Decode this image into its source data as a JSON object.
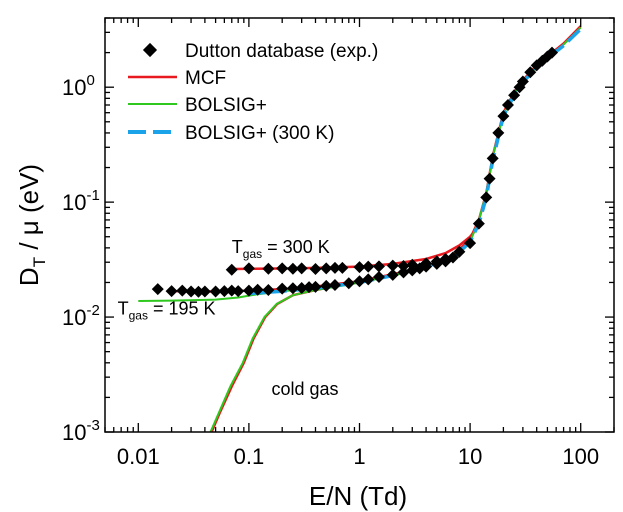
{
  "chart_data": {
    "type": "line",
    "title": "",
    "xlabel": "E/N (Td)",
    "ylabel": {
      "main": "D",
      "sub": "T",
      "rest": " / μ (eV)"
    },
    "xscale": "log",
    "yscale": "log",
    "xlim": [
      0.005,
      200
    ],
    "ylim": [
      0.001,
      4
    ],
    "x_ticks": [
      {
        "value": 0.01,
        "label": "0.01"
      },
      {
        "value": 0.1,
        "label": "0.1"
      },
      {
        "value": 1,
        "label": "1"
      },
      {
        "value": 10,
        "label": "10"
      },
      {
        "value": 100,
        "label": "100"
      }
    ],
    "y_ticks": [
      {
        "value": 0.001,
        "base": "10",
        "exp": "-3"
      },
      {
        "value": 0.01,
        "base": "10",
        "exp": "-2"
      },
      {
        "value": 0.1,
        "base": "10",
        "exp": "-1"
      },
      {
        "value": 1,
        "base": "10",
        "exp": "0"
      }
    ],
    "legend_position": "top-left",
    "colors": {
      "exp": "#000000",
      "mcf": "#e8191f",
      "bolsig": "#2ec81e",
      "bolsig300": "#1aa3e8"
    },
    "series": [
      {
        "name": "Dutton database (exp.)",
        "kind": "scatter",
        "points": [
          [
            0.015,
            0.0175
          ],
          [
            0.02,
            0.0168
          ],
          [
            0.025,
            0.017
          ],
          [
            0.03,
            0.0167
          ],
          [
            0.035,
            0.0166
          ],
          [
            0.04,
            0.0167
          ],
          [
            0.05,
            0.0167
          ],
          [
            0.06,
            0.0168
          ],
          [
            0.07,
            0.017
          ],
          [
            0.08,
            0.0168
          ],
          [
            0.1,
            0.017
          ],
          [
            0.12,
            0.0173
          ],
          [
            0.15,
            0.0172
          ],
          [
            0.2,
            0.0177
          ],
          [
            0.25,
            0.0178
          ],
          [
            0.3,
            0.0179
          ],
          [
            0.35,
            0.0182
          ],
          [
            0.4,
            0.0183
          ],
          [
            0.5,
            0.0187
          ],
          [
            0.6,
            0.019
          ],
          [
            0.8,
            0.0197
          ],
          [
            1.0,
            0.0205
          ],
          [
            1.2,
            0.0213
          ],
          [
            1.5,
            0.0223
          ],
          [
            2.0,
            0.0233
          ],
          [
            2.5,
            0.0245
          ],
          [
            3.0,
            0.0255
          ],
          [
            3.5,
            0.0265
          ],
          [
            4.0,
            0.0275
          ],
          [
            5.0,
            0.029
          ],
          [
            6.0,
            0.0305
          ],
          [
            7.0,
            0.033
          ],
          [
            8.0,
            0.037
          ],
          [
            10.0,
            0.044
          ],
          [
            12.0,
            0.065
          ],
          [
            14.0,
            0.11
          ],
          [
            15.0,
            0.16
          ],
          [
            16.0,
            0.24
          ],
          [
            18.0,
            0.4
          ],
          [
            20.0,
            0.56
          ],
          [
            22.0,
            0.7
          ],
          [
            25.0,
            0.85
          ],
          [
            28.0,
            1.0
          ],
          [
            30.0,
            1.12
          ],
          [
            35.0,
            1.35
          ],
          [
            40.0,
            1.55
          ],
          [
            45.0,
            1.7
          ],
          [
            50.0,
            1.85
          ],
          [
            55.0,
            2.0
          ],
          [
            0.07,
            0.0258
          ],
          [
            0.1,
            0.0265
          ],
          [
            0.15,
            0.0263
          ],
          [
            0.2,
            0.0265
          ],
          [
            0.25,
            0.0263
          ],
          [
            0.3,
            0.0265
          ],
          [
            0.4,
            0.0262
          ],
          [
            0.5,
            0.0265
          ],
          [
            0.6,
            0.0268
          ],
          [
            0.7,
            0.0268
          ],
          [
            1.0,
            0.0272
          ],
          [
            1.2,
            0.0275
          ],
          [
            1.5,
            0.0276
          ],
          [
            2.0,
            0.028
          ],
          [
            2.5,
            0.0278
          ],
          [
            3.0,
            0.0285
          ],
          [
            4.0,
            0.0293
          ],
          [
            5.0,
            0.0305
          ],
          [
            6.0,
            0.032
          ]
        ]
      },
      {
        "name": "MCF",
        "kind": "line",
        "lines": [
          [
            [
              0.07,
              0.0262
            ],
            [
              0.3,
              0.0266
            ],
            [
              1.0,
              0.0275
            ],
            [
              2.0,
              0.029
            ],
            [
              4.0,
              0.032
            ],
            [
              6.0,
              0.036
            ],
            [
              8.0,
              0.042
            ],
            [
              10.0,
              0.05
            ],
            [
              12.0,
              0.062
            ]
          ],
          [
            [
              0.022,
              0.0168
            ],
            [
              0.05,
              0.0167
            ],
            [
              0.1,
              0.017
            ],
            [
              0.3,
              0.0178
            ],
            [
              1.0,
              0.0205
            ],
            [
              2.0,
              0.0235
            ],
            [
              4.0,
              0.028
            ],
            [
              7.0,
              0.034
            ],
            [
              10.0,
              0.048
            ],
            [
              12.0,
              0.07
            ],
            [
              14.0,
              0.12
            ],
            [
              16.0,
              0.25
            ],
            [
              20.0,
              0.6
            ],
            [
              25.0,
              0.9
            ],
            [
              30.0,
              1.15
            ],
            [
              40.0,
              1.55
            ],
            [
              50.0,
              1.85
            ],
            [
              70.0,
              2.4
            ],
            [
              100.0,
              3.4
            ]
          ],
          [
            [
              0.046,
              0.001
            ],
            [
              0.055,
              0.0015
            ],
            [
              0.07,
              0.0025
            ],
            [
              0.09,
              0.004
            ],
            [
              0.11,
              0.0065
            ],
            [
              0.14,
              0.01
            ],
            [
              0.18,
              0.013
            ],
            [
              0.25,
              0.0155
            ],
            [
              0.4,
              0.0172
            ],
            [
              0.7,
              0.019
            ],
            [
              1.0,
              0.0205
            ],
            [
              2.0,
              0.0235
            ]
          ]
        ]
      },
      {
        "name": "BOLSIG+",
        "kind": "line",
        "lines": [
          [
            [
              0.01,
              0.0138
            ],
            [
              0.02,
              0.0139
            ],
            [
              0.05,
              0.0142
            ],
            [
              0.08,
              0.0148
            ],
            [
              0.12,
              0.0158
            ],
            [
              0.2,
              0.0168
            ],
            [
              0.4,
              0.0178
            ],
            [
              1.0,
              0.02
            ],
            [
              2.0,
              0.0228
            ],
            [
              4.0,
              0.0275
            ],
            [
              7.0,
              0.033
            ],
            [
              9.0,
              0.04
            ],
            [
              10.0,
              0.045
            ],
            [
              12.0,
              0.07
            ],
            [
              14.0,
              0.12
            ],
            [
              16.0,
              0.25
            ],
            [
              20.0,
              0.58
            ],
            [
              25.0,
              0.88
            ],
            [
              30.0,
              1.12
            ],
            [
              40.0,
              1.52
            ],
            [
              50.0,
              1.8
            ],
            [
              70.0,
              2.35
            ],
            [
              100.0,
              3.3
            ]
          ],
          [
            [
              0.045,
              0.001
            ],
            [
              0.054,
              0.0015
            ],
            [
              0.068,
              0.0025
            ],
            [
              0.088,
              0.004
            ],
            [
              0.108,
              0.0065
            ],
            [
              0.138,
              0.01
            ],
            [
              0.178,
              0.013
            ],
            [
              0.25,
              0.0155
            ],
            [
              0.4,
              0.0172
            ],
            [
              0.7,
              0.0188
            ],
            [
              1.0,
              0.02
            ]
          ]
        ]
      },
      {
        "name": "BOLSIG+ (300 K)",
        "kind": "line",
        "lines": [
          [
            [
              0.1,
              0.016
            ],
            [
              0.2,
              0.0168
            ],
            [
              0.4,
              0.0178
            ],
            [
              1.0,
              0.02
            ],
            [
              2.0,
              0.023
            ],
            [
              4.0,
              0.0275
            ],
            [
              7.0,
              0.033
            ],
            [
              10.0,
              0.045
            ],
            [
              12.0,
              0.065
            ],
            [
              14.0,
              0.11
            ],
            [
              16.0,
              0.23
            ],
            [
              20.0,
              0.56
            ],
            [
              25.0,
              0.85
            ],
            [
              30.0,
              1.1
            ],
            [
              40.0,
              1.5
            ],
            [
              50.0,
              1.78
            ],
            [
              70.0,
              2.3
            ],
            [
              100.0,
              3.2
            ]
          ]
        ]
      }
    ],
    "annotations": [
      {
        "id": "t300",
        "prefix": "T",
        "sub": "gas",
        "suffix": " = 300 K",
        "x": 0.07,
        "y": 0.036
      },
      {
        "id": "t195",
        "prefix": "T",
        "sub": "gas",
        "suffix": " = 195 K",
        "x": 0.0065,
        "y": 0.0105
      },
      {
        "id": "cold",
        "text": "cold gas",
        "x": 0.16,
        "y": 0.0021
      }
    ]
  }
}
